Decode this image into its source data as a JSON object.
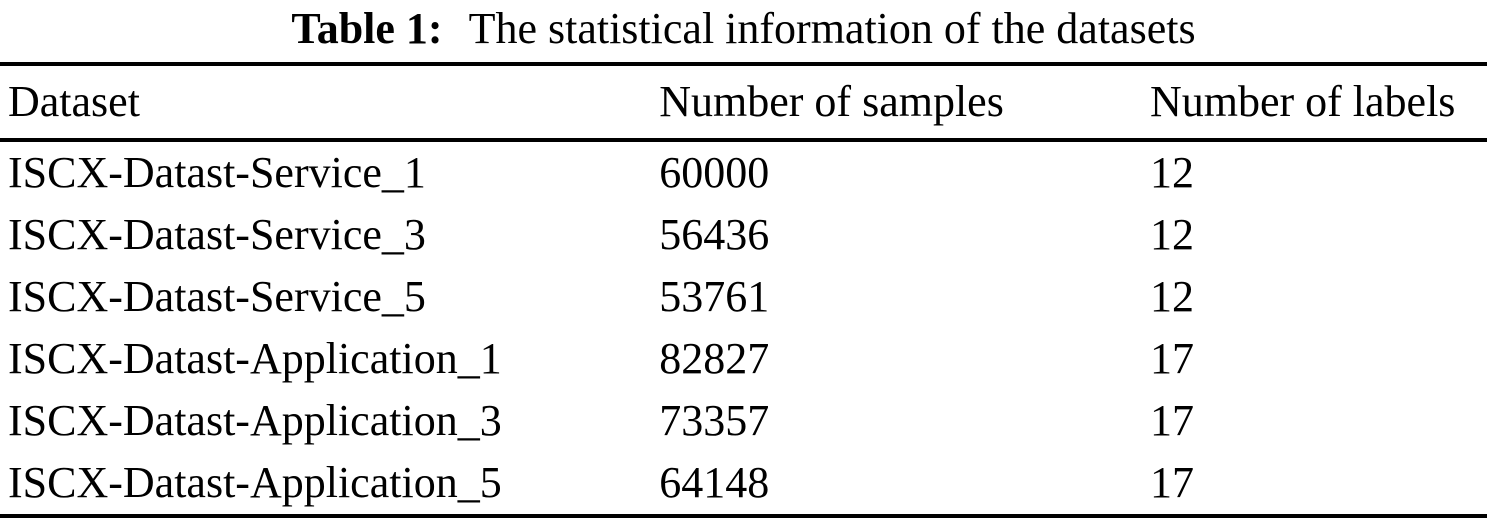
{
  "caption": {
    "label": "Table 1:",
    "text": "The statistical information of the datasets"
  },
  "table": {
    "columns": [
      "Dataset",
      "Number of samples",
      "Number of labels"
    ],
    "rows": [
      {
        "dataset": "ISCX-Datast-Service_1",
        "samples": "60000",
        "labels": "12"
      },
      {
        "dataset": "ISCX-Datast-Service_3",
        "samples": "56436",
        "labels": "12"
      },
      {
        "dataset": "ISCX-Datast-Service_5",
        "samples": "53761",
        "labels": "12"
      },
      {
        "dataset": "ISCX-Datast-Application_1",
        "samples": "82827",
        "labels": "17"
      },
      {
        "dataset": "ISCX-Datast-Application_3",
        "samples": "73357",
        "labels": "17"
      },
      {
        "dataset": "ISCX-Datast-Application_5",
        "samples": "64148",
        "labels": "17"
      }
    ]
  },
  "chart_data": {
    "type": "table",
    "title": "Table 1: The statistical information of the datasets",
    "columns": [
      "Dataset",
      "Number of samples",
      "Number of labels"
    ],
    "rows": [
      [
        "ISCX-Datast-Service_1",
        60000,
        12
      ],
      [
        "ISCX-Datast-Service_3",
        56436,
        12
      ],
      [
        "ISCX-Datast-Service_5",
        53761,
        12
      ],
      [
        "ISCX-Datast-Application_1",
        82827,
        17
      ],
      [
        "ISCX-Datast-Application_3",
        73357,
        17
      ],
      [
        "ISCX-Datast-Application_5",
        64148,
        17
      ]
    ]
  },
  "colors": {
    "text": "#000000",
    "background": "#ffffff",
    "rule": "#000000"
  }
}
